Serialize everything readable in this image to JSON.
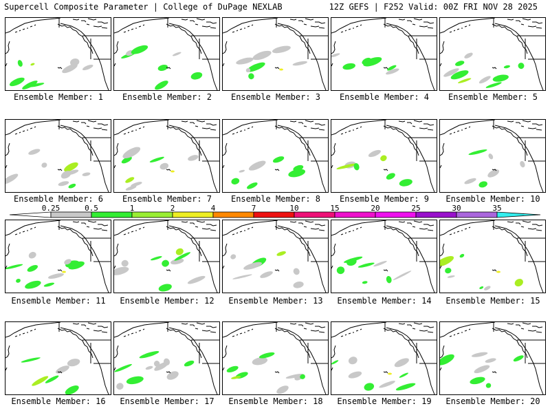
{
  "header": {
    "left_title": "Supercell Composite Parameter | College of DuPage NEXLAB",
    "right_title": "12Z GEFS | F252 Valid: 00Z FRI NOV 28 2025"
  },
  "colors": {
    "coast": "#000000",
    "fill_low": "#c8c8c8",
    "fill_mid": "#33ee33",
    "fill_high": "#aaee22",
    "fill_hot": "#eeee22"
  },
  "panels": [
    {
      "member": 1,
      "label": "Ensemble Member: 1"
    },
    {
      "member": 2,
      "label": "Ensemble Member: 2"
    },
    {
      "member": 3,
      "label": "Ensemble Member: 3"
    },
    {
      "member": 4,
      "label": "Ensemble Member: 4"
    },
    {
      "member": 5,
      "label": "Ensemble Member: 5"
    },
    {
      "member": 6,
      "label": "Ensemble Member: 6"
    },
    {
      "member": 7,
      "label": "Ensemble Member: 7"
    },
    {
      "member": 8,
      "label": "Ensemble Member: 8"
    },
    {
      "member": 9,
      "label": "Ensemble Member: 9"
    },
    {
      "member": 10,
      "label": "Ensemble Member: 10"
    },
    {
      "member": 11,
      "label": "Ensemble Member: 11"
    },
    {
      "member": 12,
      "label": "Ensemble Member: 12"
    },
    {
      "member": 13,
      "label": "Ensemble Member: 13"
    },
    {
      "member": 14,
      "label": "Ensemble Member: 14"
    },
    {
      "member": 15,
      "label": "Ensemble Member: 15"
    },
    {
      "member": 16,
      "label": "Ensemble Member: 16"
    },
    {
      "member": 17,
      "label": "Ensemble Member: 17"
    },
    {
      "member": 18,
      "label": "Ensemble Member: 18"
    },
    {
      "member": 19,
      "label": "Ensemble Member: 19"
    },
    {
      "member": 20,
      "label": "Ensemble Member: 20"
    }
  ],
  "color_scale": {
    "values": [
      "0.25",
      "0.5",
      "1",
      "2",
      "4",
      "7",
      "10",
      "15",
      "20",
      "25",
      "30",
      "35"
    ],
    "colors": [
      "#ffffff",
      "#c8c8c8",
      "#33ee33",
      "#99ee33",
      "#eeee22",
      "#ff8800",
      "#ee1111",
      "#ee1177",
      "#ee11cc",
      "#ee11ee",
      "#9911cc",
      "#aa66dd",
      "#33eeee"
    ]
  }
}
